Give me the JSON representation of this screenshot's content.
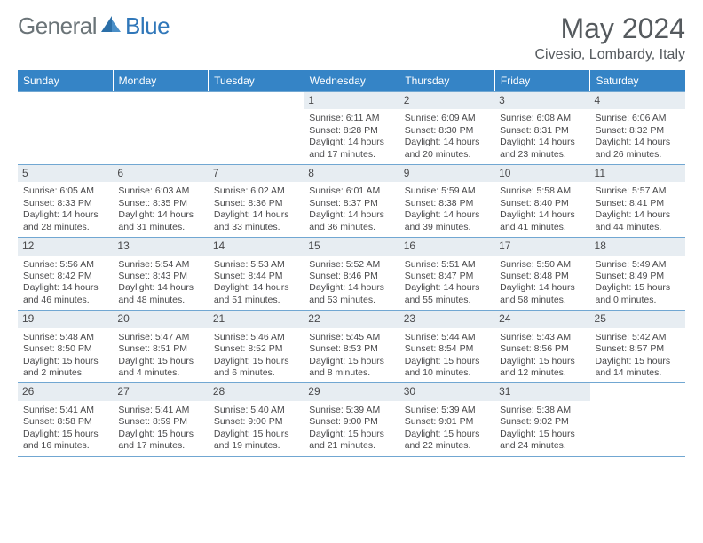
{
  "brand": {
    "name1": "General",
    "name2": "Blue"
  },
  "title": "May 2024",
  "location": "Civesio, Lombardy, Italy",
  "colors": {
    "header_bg": "#3584c6",
    "header_text": "#ffffff",
    "border": "#71a7d2",
    "daynum_bg": "#e7edf2",
    "text": "#49494b",
    "brand_gray": "#6b7478",
    "brand_blue": "#3077b9",
    "page_bg": "#ffffff"
  },
  "weekdays": [
    "Sunday",
    "Monday",
    "Tuesday",
    "Wednesday",
    "Thursday",
    "Friday",
    "Saturday"
  ],
  "weeks": [
    [
      {
        "day": "",
        "sunrise": "",
        "sunset": "",
        "daylight": ""
      },
      {
        "day": "",
        "sunrise": "",
        "sunset": "",
        "daylight": ""
      },
      {
        "day": "",
        "sunrise": "",
        "sunset": "",
        "daylight": ""
      },
      {
        "day": "1",
        "sunrise": "Sunrise: 6:11 AM",
        "sunset": "Sunset: 8:28 PM",
        "daylight": "Daylight: 14 hours and 17 minutes."
      },
      {
        "day": "2",
        "sunrise": "Sunrise: 6:09 AM",
        "sunset": "Sunset: 8:30 PM",
        "daylight": "Daylight: 14 hours and 20 minutes."
      },
      {
        "day": "3",
        "sunrise": "Sunrise: 6:08 AM",
        "sunset": "Sunset: 8:31 PM",
        "daylight": "Daylight: 14 hours and 23 minutes."
      },
      {
        "day": "4",
        "sunrise": "Sunrise: 6:06 AM",
        "sunset": "Sunset: 8:32 PM",
        "daylight": "Daylight: 14 hours and 26 minutes."
      }
    ],
    [
      {
        "day": "5",
        "sunrise": "Sunrise: 6:05 AM",
        "sunset": "Sunset: 8:33 PM",
        "daylight": "Daylight: 14 hours and 28 minutes."
      },
      {
        "day": "6",
        "sunrise": "Sunrise: 6:03 AM",
        "sunset": "Sunset: 8:35 PM",
        "daylight": "Daylight: 14 hours and 31 minutes."
      },
      {
        "day": "7",
        "sunrise": "Sunrise: 6:02 AM",
        "sunset": "Sunset: 8:36 PM",
        "daylight": "Daylight: 14 hours and 33 minutes."
      },
      {
        "day": "8",
        "sunrise": "Sunrise: 6:01 AM",
        "sunset": "Sunset: 8:37 PM",
        "daylight": "Daylight: 14 hours and 36 minutes."
      },
      {
        "day": "9",
        "sunrise": "Sunrise: 5:59 AM",
        "sunset": "Sunset: 8:38 PM",
        "daylight": "Daylight: 14 hours and 39 minutes."
      },
      {
        "day": "10",
        "sunrise": "Sunrise: 5:58 AM",
        "sunset": "Sunset: 8:40 PM",
        "daylight": "Daylight: 14 hours and 41 minutes."
      },
      {
        "day": "11",
        "sunrise": "Sunrise: 5:57 AM",
        "sunset": "Sunset: 8:41 PM",
        "daylight": "Daylight: 14 hours and 44 minutes."
      }
    ],
    [
      {
        "day": "12",
        "sunrise": "Sunrise: 5:56 AM",
        "sunset": "Sunset: 8:42 PM",
        "daylight": "Daylight: 14 hours and 46 minutes."
      },
      {
        "day": "13",
        "sunrise": "Sunrise: 5:54 AM",
        "sunset": "Sunset: 8:43 PM",
        "daylight": "Daylight: 14 hours and 48 minutes."
      },
      {
        "day": "14",
        "sunrise": "Sunrise: 5:53 AM",
        "sunset": "Sunset: 8:44 PM",
        "daylight": "Daylight: 14 hours and 51 minutes."
      },
      {
        "day": "15",
        "sunrise": "Sunrise: 5:52 AM",
        "sunset": "Sunset: 8:46 PM",
        "daylight": "Daylight: 14 hours and 53 minutes."
      },
      {
        "day": "16",
        "sunrise": "Sunrise: 5:51 AM",
        "sunset": "Sunset: 8:47 PM",
        "daylight": "Daylight: 14 hours and 55 minutes."
      },
      {
        "day": "17",
        "sunrise": "Sunrise: 5:50 AM",
        "sunset": "Sunset: 8:48 PM",
        "daylight": "Daylight: 14 hours and 58 minutes."
      },
      {
        "day": "18",
        "sunrise": "Sunrise: 5:49 AM",
        "sunset": "Sunset: 8:49 PM",
        "daylight": "Daylight: 15 hours and 0 minutes."
      }
    ],
    [
      {
        "day": "19",
        "sunrise": "Sunrise: 5:48 AM",
        "sunset": "Sunset: 8:50 PM",
        "daylight": "Daylight: 15 hours and 2 minutes."
      },
      {
        "day": "20",
        "sunrise": "Sunrise: 5:47 AM",
        "sunset": "Sunset: 8:51 PM",
        "daylight": "Daylight: 15 hours and 4 minutes."
      },
      {
        "day": "21",
        "sunrise": "Sunrise: 5:46 AM",
        "sunset": "Sunset: 8:52 PM",
        "daylight": "Daylight: 15 hours and 6 minutes."
      },
      {
        "day": "22",
        "sunrise": "Sunrise: 5:45 AM",
        "sunset": "Sunset: 8:53 PM",
        "daylight": "Daylight: 15 hours and 8 minutes."
      },
      {
        "day": "23",
        "sunrise": "Sunrise: 5:44 AM",
        "sunset": "Sunset: 8:54 PM",
        "daylight": "Daylight: 15 hours and 10 minutes."
      },
      {
        "day": "24",
        "sunrise": "Sunrise: 5:43 AM",
        "sunset": "Sunset: 8:56 PM",
        "daylight": "Daylight: 15 hours and 12 minutes."
      },
      {
        "day": "25",
        "sunrise": "Sunrise: 5:42 AM",
        "sunset": "Sunset: 8:57 PM",
        "daylight": "Daylight: 15 hours and 14 minutes."
      }
    ],
    [
      {
        "day": "26",
        "sunrise": "Sunrise: 5:41 AM",
        "sunset": "Sunset: 8:58 PM",
        "daylight": "Daylight: 15 hours and 16 minutes."
      },
      {
        "day": "27",
        "sunrise": "Sunrise: 5:41 AM",
        "sunset": "Sunset: 8:59 PM",
        "daylight": "Daylight: 15 hours and 17 minutes."
      },
      {
        "day": "28",
        "sunrise": "Sunrise: 5:40 AM",
        "sunset": "Sunset: 9:00 PM",
        "daylight": "Daylight: 15 hours and 19 minutes."
      },
      {
        "day": "29",
        "sunrise": "Sunrise: 5:39 AM",
        "sunset": "Sunset: 9:00 PM",
        "daylight": "Daylight: 15 hours and 21 minutes."
      },
      {
        "day": "30",
        "sunrise": "Sunrise: 5:39 AM",
        "sunset": "Sunset: 9:01 PM",
        "daylight": "Daylight: 15 hours and 22 minutes."
      },
      {
        "day": "31",
        "sunrise": "Sunrise: 5:38 AM",
        "sunset": "Sunset: 9:02 PM",
        "daylight": "Daylight: 15 hours and 24 minutes."
      },
      {
        "day": "",
        "sunrise": "",
        "sunset": "",
        "daylight": ""
      }
    ]
  ]
}
